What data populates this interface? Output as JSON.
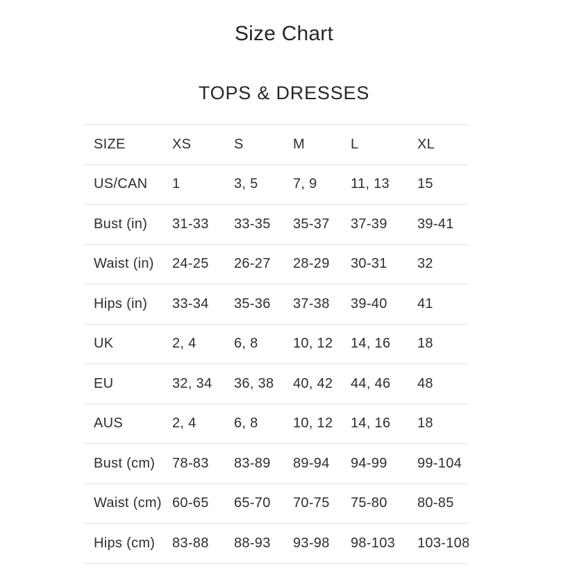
{
  "page": {
    "title": "Size Chart",
    "section_title": "TOPS & DRESSES"
  },
  "size_table": {
    "columns": [
      "SIZE",
      "XS",
      "S",
      "M",
      "L",
      "XL"
    ],
    "rows": [
      {
        "label": "US/CAN",
        "values": [
          "1",
          "3, 5",
          "7, 9",
          "11, 13",
          "15"
        ]
      },
      {
        "label": "Bust (in)",
        "values": [
          "31-33",
          "33-35",
          "35-37",
          "37-39",
          "39-41"
        ]
      },
      {
        "label": "Waist (in)",
        "values": [
          "24-25",
          "26-27",
          "28-29",
          "30-31",
          "32"
        ]
      },
      {
        "label": "Hips (in)",
        "values": [
          "33-34",
          "35-36",
          "37-38",
          "39-40",
          "41"
        ]
      },
      {
        "label": "UK",
        "values": [
          "2, 4",
          "6, 8",
          "10, 12",
          "14, 16",
          "18"
        ]
      },
      {
        "label": "EU",
        "values": [
          "32, 34",
          "36, 38",
          "40, 42",
          "44, 46",
          "48"
        ]
      },
      {
        "label": "AUS",
        "values": [
          "2, 4",
          "6, 8",
          "10, 12",
          "14, 16",
          "18"
        ]
      },
      {
        "label": "Bust (cm)",
        "values": [
          "78-83",
          "83-89",
          "89-94",
          "94-99",
          "99-104"
        ]
      },
      {
        "label": "Waist (cm)",
        "values": [
          "60-65",
          "65-70",
          "70-75",
          "75-80",
          "80-85"
        ]
      },
      {
        "label": "Hips (cm)",
        "values": [
          "83-88",
          "88-93",
          "93-98",
          "98-103",
          "103-108"
        ]
      }
    ]
  },
  "colors": {
    "text": "#2e2e2e",
    "heading": "#262626",
    "divider": "#e2e2e2",
    "background": "#ffffff"
  }
}
